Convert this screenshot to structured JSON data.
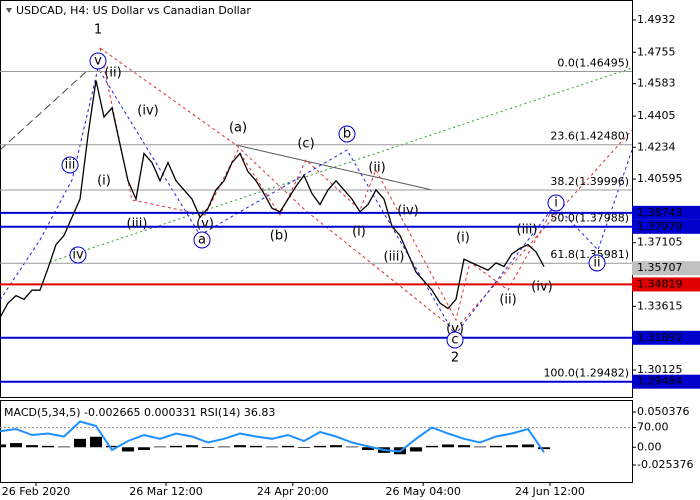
{
  "chart_data": [
    {
      "type": "line",
      "title": "USDCAD, H4:  US Dollar vs Canadian Dollar",
      "color": "#000000",
      "values": [
        1.33,
        1.338,
        1.342,
        1.34,
        1.345,
        1.345,
        1.357,
        1.37,
        1.375,
        1.385,
        1.395,
        1.43,
        1.46,
        1.44,
        1.445,
        1.425,
        1.405,
        1.395,
        1.42,
        1.415,
        1.405,
        1.415,
        1.405,
        1.4,
        1.395,
        1.385,
        1.39,
        1.4,
        1.405,
        1.415,
        1.42,
        1.41,
        1.405,
        1.398,
        1.39,
        1.388,
        1.395,
        1.402,
        1.408,
        1.398,
        1.392,
        1.4,
        1.405,
        1.4,
        1.395,
        1.388,
        1.392,
        1.4,
        1.395,
        1.38,
        1.375,
        1.365,
        1.355,
        1.35,
        1.345,
        1.338,
        1.335,
        1.34,
        1.362,
        1.36,
        1.358,
        1.356,
        1.36,
        1.358,
        1.365,
        1.368,
        1.37,
        1.366,
        1.358
      ],
      "xlim": [
        0,
        79
      ],
      "xticks": [
        {
          "value": 4.5,
          "label": "26 Feb 2020"
        },
        {
          "value": 20.75,
          "label": "26 Mar 12:00"
        },
        {
          "value": 36.6,
          "label": "24 Apr 20:00"
        },
        {
          "value": 52.9,
          "label": "26 May 04:00"
        },
        {
          "value": 68.75,
          "label": "24 Jun 12:00"
        }
      ],
      "ylim": [
        1.28754,
        1.50417
      ],
      "yticks": [
        1.4932,
        1.4755,
        1.4583,
        1.4405,
        1.4234,
        1.40595,
        1.37105,
        1.33615,
        1.30125
      ],
      "fib_levels": [
        {
          "value": 1.46495,
          "label": "0.0(1.46495)"
        },
        {
          "value": 1.4248,
          "label": "23.6(1.42480)"
        },
        {
          "value": 1.39996,
          "label": "38.2(1.39996)"
        },
        {
          "value": 1.37988,
          "label": "50.0(1.37988)"
        },
        {
          "value": 1.35981,
          "label": "61.8(1.35981)"
        },
        {
          "value": 1.29482,
          "label": "100.0(1.29482)"
        }
      ],
      "levels": [
        {
          "value": 1.38743,
          "color": "#0000cc"
        },
        {
          "value": 1.37979,
          "color": "#0000cc"
        },
        {
          "value": 1.34819,
          "color": "#e00000"
        },
        {
          "value": 1.31892,
          "color": "#0000cc"
        },
        {
          "value": 1.29484,
          "color": "#0000cc"
        }
      ],
      "last_price": 1.35707,
      "annotations": [
        {
          "text": "1",
          "color": "#cc0000",
          "circled": false
        },
        {
          "text": "v",
          "color": "#0000cc",
          "circled": true
        },
        {
          "text": "(ii)",
          "color": "#cc0000",
          "circled": false
        },
        {
          "text": "(iv)",
          "color": "#cc0000",
          "circled": false
        },
        {
          "text": "(i)",
          "color": "#cc0000",
          "circled": false
        },
        {
          "text": "iii",
          "color": "#0000cc",
          "circled": true
        },
        {
          "text": "iv",
          "color": "#0000cc",
          "circled": true
        },
        {
          "text": "(iii)",
          "color": "#cc0000",
          "circled": false
        },
        {
          "text": "(v)",
          "color": "#cc0000",
          "circled": false
        },
        {
          "text": "a",
          "color": "#0000cc",
          "circled": true
        },
        {
          "text": "(a)",
          "color": "#cc0000",
          "circled": false
        },
        {
          "text": "(b)",
          "color": "#cc0000",
          "circled": false
        },
        {
          "text": "(c)",
          "color": "#cc0000",
          "circled": false
        },
        {
          "text": "b",
          "color": "#0000cc",
          "circled": true
        },
        {
          "text": "(i)",
          "color": "#cc0000",
          "circled": false
        },
        {
          "text": "(ii)",
          "color": "#cc0000",
          "circled": false
        },
        {
          "text": "(iv)",
          "color": "#cc0000",
          "circled": false
        },
        {
          "text": "(iii)",
          "color": "#cc0000",
          "circled": false
        },
        {
          "text": "(v)",
          "color": "#cc0000",
          "circled": false
        },
        {
          "text": "c",
          "color": "#0000cc",
          "circled": true
        },
        {
          "text": "2",
          "color": "#cc0000",
          "circled": false
        },
        {
          "text": "(i)",
          "color": "#cc0000",
          "circled": false
        },
        {
          "text": "(ii)",
          "color": "#cc0000",
          "circled": false
        },
        {
          "text": "(iii)",
          "color": "#cc0000",
          "circled": false
        },
        {
          "text": "(iv)",
          "color": "#cc0000",
          "circled": false
        },
        {
          "text": "i",
          "color": "#0000cc",
          "circled": true
        },
        {
          "text": "ii",
          "color": "#0000cc",
          "circled": true
        }
      ]
    },
    {
      "type": "line",
      "title": "MACD(5,34,5) -0.002665 0.000331 RSI(14) 36.83",
      "color": "#1e90ff",
      "values": [
        65,
        68,
        60,
        62,
        58,
        78,
        72,
        40,
        52,
        60,
        55,
        62,
        58,
        50,
        55,
        62,
        58,
        55,
        60,
        52,
        64,
        58,
        50,
        45,
        40,
        38,
        55,
        70,
        62,
        55,
        50,
        58,
        62,
        68,
        37
      ],
      "xlim": [
        0,
        39.5
      ],
      "ylim": [
        0,
        100
      ],
      "yticks": [
        {
          "value": 70,
          "label": "70.00"
        }
      ],
      "macd": {
        "axis": "y2",
        "color": "#000000",
        "values": [
          0.004,
          0.006,
          0.003,
          0.002,
          0.001,
          0.012,
          0.015,
          0.002,
          -0.006,
          -0.004,
          0.001,
          0.002,
          0.003,
          -0.001,
          0.001,
          0.003,
          0.002,
          0.001,
          0.002,
          -0.001,
          0.002,
          0.003,
          0.001,
          -0.004,
          -0.008,
          -0.01,
          -0.006,
          0.002,
          0.004,
          0.003,
          0.001,
          0.002,
          0.003,
          0.004,
          -0.002665
        ]
      },
      "y2lim": [
        -0.0468,
        0.0604
      ],
      "y2ticks": [
        0.050376,
        {
          "value": 0,
          "label": "0.00"
        },
        -0.025376
      ]
    }
  ]
}
